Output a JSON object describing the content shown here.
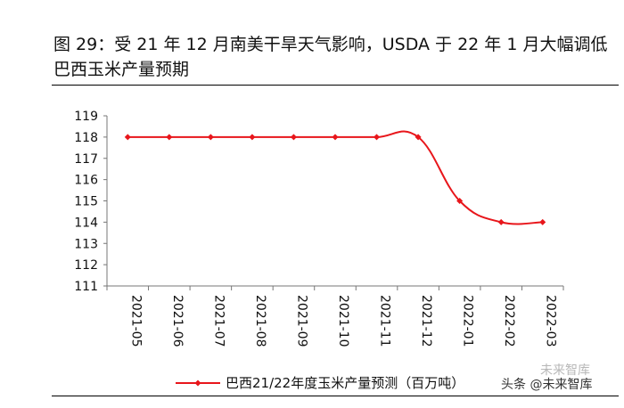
{
  "header": {
    "title": "图 29：受 21 年 12 月南美干旱天气影响，USDA 于 22 年 1 月大幅调低巴西玉米产量预期"
  },
  "chart_data": {
    "type": "line",
    "title": "图 29：受 21 年 12 月南美干旱天气影响，USDA 于 22 年 1 月大幅调低巴西玉米产量预期",
    "categories": [
      "2021-05",
      "2021-06",
      "2021-07",
      "2021-08",
      "2021-09",
      "2021-10",
      "2021-11",
      "2021-12",
      "2022-01",
      "2022-02",
      "2022-03"
    ],
    "series": [
      {
        "name": "巴西21/22年度玉米产量预测（百万吨）",
        "values": [
          118,
          118,
          118,
          118,
          118,
          118,
          118,
          118,
          115,
          114,
          114
        ],
        "color": "#e8161b"
      }
    ],
    "yticks": [
      "111",
      "112",
      "113",
      "114",
      "115",
      "116",
      "117",
      "118",
      "119"
    ],
    "ylim": [
      111,
      119
    ],
    "xlabel": "",
    "ylabel": "",
    "grid": false,
    "legend": "bottom"
  },
  "watermark": {
    "text": "头条 @未来智库",
    "faded": "未来智库"
  }
}
